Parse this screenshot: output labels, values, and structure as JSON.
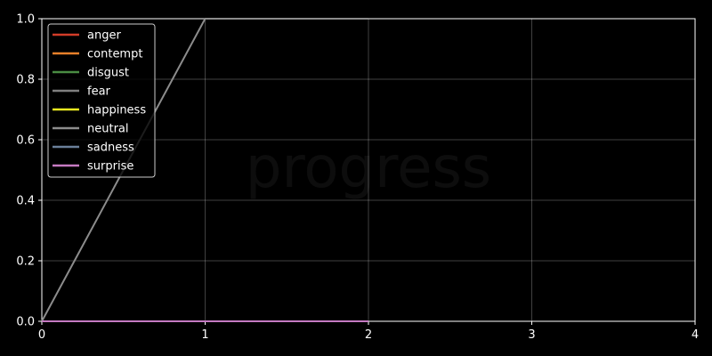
{
  "chart_data": {
    "type": "line",
    "watermark": "progress",
    "xlim": [
      0,
      4
    ],
    "ylim": [
      0,
      1
    ],
    "xticks": [
      "0",
      "1",
      "2",
      "3",
      "4"
    ],
    "yticks": [
      "0.0",
      "0.2",
      "0.4",
      "0.6",
      "0.8",
      "1.0"
    ],
    "grid": true,
    "legend_position": "top-left",
    "x": [
      0,
      1,
      2
    ],
    "series": [
      {
        "name": "anger",
        "color": "#d13c28",
        "values": [
          0,
          0,
          0
        ]
      },
      {
        "name": "contempt",
        "color": "#e8802a",
        "values": [
          0,
          0,
          0
        ]
      },
      {
        "name": "disgust",
        "color": "#4a8c43",
        "values": [
          0,
          0,
          0
        ]
      },
      {
        "name": "fear",
        "color": "#7f7f7f",
        "values": [
          0,
          0,
          0
        ]
      },
      {
        "name": "happiness",
        "color": "#e8e820",
        "values": [
          0,
          0,
          0
        ]
      },
      {
        "name": "neutral",
        "color": "#8c8c8c",
        "values": [
          0,
          1,
          1
        ]
      },
      {
        "name": "sadness",
        "color": "#6a7f99",
        "values": [
          0,
          0,
          0
        ]
      },
      {
        "name": "surprise",
        "color": "#c57ac2",
        "values": [
          0,
          0,
          0
        ]
      }
    ]
  }
}
